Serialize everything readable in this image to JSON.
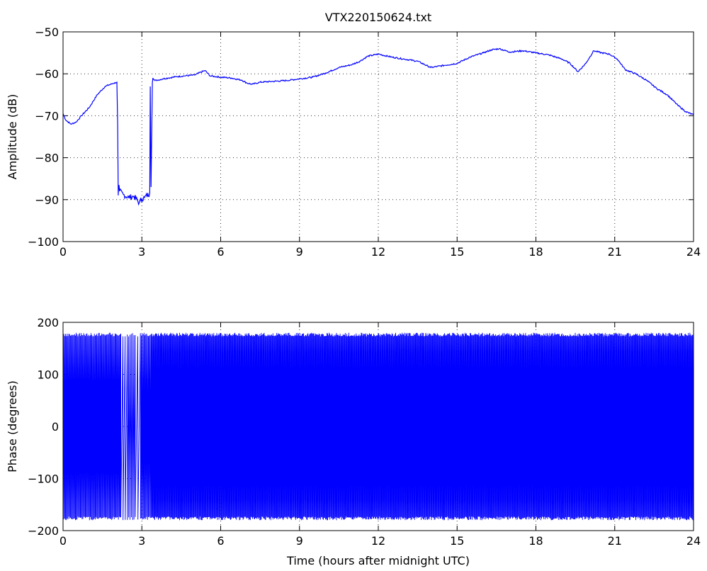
{
  "chart_data": [
    {
      "type": "line",
      "title": "VTX220150624.txt",
      "xlabel": "",
      "ylabel": "Amplitude (dB)",
      "xlim": [
        0,
        24
      ],
      "ylim": [
        -100,
        -50
      ],
      "xticks": [
        "0",
        "3",
        "6",
        "9",
        "12",
        "15",
        "18",
        "21",
        "24"
      ],
      "yticks": [
        "−50",
        "−60",
        "−70",
        "−80",
        "−90",
        "−100"
      ],
      "grid": true,
      "color": "#0000ff",
      "x": [
        0,
        0.1,
        0.3,
        0.5,
        0.7,
        1.0,
        1.3,
        1.6,
        1.9,
        2.05,
        2.08,
        2.1,
        2.12,
        2.15,
        2.3,
        2.5,
        2.7,
        2.9,
        3.0,
        3.1,
        3.3,
        3.32,
        3.35,
        3.4,
        3.42,
        3.45,
        3.5,
        3.6,
        3.8,
        4.0,
        4.3,
        4.6,
        5.0,
        5.4,
        5.6,
        6.0,
        6.4,
        6.8,
        7.0,
        7.2,
        7.5,
        8.0,
        8.5,
        9.0,
        9.5,
        10.0,
        10.5,
        11.0,
        11.3,
        11.6,
        12.0,
        12.5,
        13.0,
        13.5,
        14.0,
        14.5,
        15.0,
        15.5,
        16.0,
        16.3,
        16.6,
        17.0,
        17.5,
        18.0,
        18.5,
        19.0,
        19.3,
        19.6,
        19.9,
        20.2,
        20.5,
        20.8,
        21.1,
        21.4,
        21.8,
        22.2,
        22.6,
        23.0,
        23.4,
        23.7,
        24.0
      ],
      "y": [
        -69.5,
        -71,
        -72,
        -71.5,
        -70,
        -68,
        -65,
        -63,
        -62.3,
        -62,
        -72,
        -89,
        -86.5,
        -88,
        -88.8,
        -89.5,
        -89.2,
        -90.8,
        -89.8,
        -89.5,
        -88.5,
        -63,
        -87,
        -62,
        -61,
        -61.3,
        -61.6,
        -61.5,
        -61.2,
        -61,
        -60.7,
        -60.5,
        -60.3,
        -59.2,
        -60.5,
        -60.8,
        -61,
        -61.5,
        -62.2,
        -62.5,
        -62,
        -61.8,
        -61.6,
        -61.2,
        -60.8,
        -59.8,
        -58.5,
        -57.8,
        -57,
        -55.8,
        -55.3,
        -56,
        -56.5,
        -57,
        -58.5,
        -58,
        -57.5,
        -56,
        -55,
        -54.3,
        -54,
        -54.8,
        -54.5,
        -55,
        -55.5,
        -56.5,
        -57.5,
        -59.5,
        -57.5,
        -54.5,
        -55,
        -55.3,
        -56.5,
        -59,
        -60,
        -61.5,
        -63.5,
        -65,
        -67.5,
        -69,
        -69.8
      ]
    },
    {
      "type": "line",
      "title": "",
      "xlabel": "Time (hours after midnight UTC)",
      "ylabel": "Phase (degrees)",
      "xlim": [
        0,
        24
      ],
      "ylim": [
        -200,
        200
      ],
      "xticks": [
        "0",
        "3",
        "6",
        "9",
        "12",
        "15",
        "18",
        "21",
        "24"
      ],
      "yticks": [
        "200",
        "100",
        "0",
        "−100",
        "−200"
      ],
      "grid": true,
      "color": "#0000ff",
      "phase_range": [
        -180,
        180
      ],
      "segments": [
        {
          "x": [
            0,
            2.2
          ],
          "cycles_per_hour": 32
        },
        {
          "x": [
            2.2,
            2.45
          ],
          "cycles_per_hour": 12
        },
        {
          "x": [
            2.45,
            2.75
          ],
          "cycles_per_hour": 20
        },
        {
          "x": [
            2.75,
            2.95
          ],
          "cycles_per_hour": 8
        },
        {
          "x": [
            2.95,
            3.35
          ],
          "cycles_per_hour": 30
        },
        {
          "x": [
            3.35,
            24
          ],
          "cycles_per_hour": 36
        }
      ]
    }
  ]
}
